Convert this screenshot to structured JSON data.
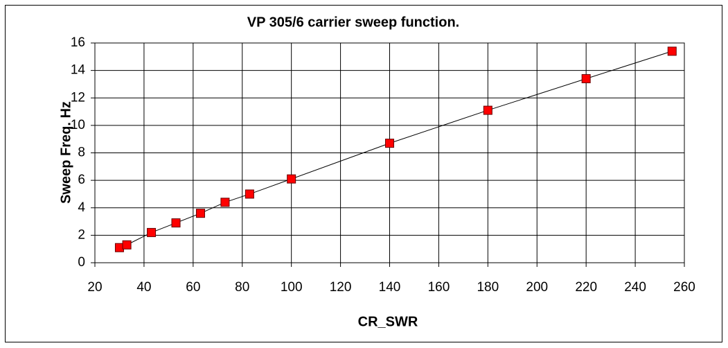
{
  "chart_data": {
    "type": "scatter",
    "title": "VP 305/6 carrier sweep function.",
    "x_label": "CR_SWR",
    "y_label": "Sweep Freq. Hz",
    "series": [
      {
        "color": "#ff0000",
        "x": [
          30,
          33,
          43,
          53,
          63,
          73,
          83,
          100,
          140,
          180,
          220,
          255
        ],
        "values": [
          1.1,
          1.3,
          2.2,
          2.9,
          3.6,
          4.4,
          5.0,
          6.1,
          8.7,
          11.1,
          13.4,
          15.4
        ]
      }
    ],
    "xlim": [
      20,
      260
    ],
    "xticks": [
      20,
      40,
      60,
      80,
      100,
      120,
      140,
      160,
      180,
      200,
      220,
      240,
      260
    ],
    "ylim": [
      0,
      16
    ],
    "yticks": [
      0,
      2,
      4,
      6,
      8,
      10,
      12,
      14,
      16
    ],
    "grid": true
  }
}
